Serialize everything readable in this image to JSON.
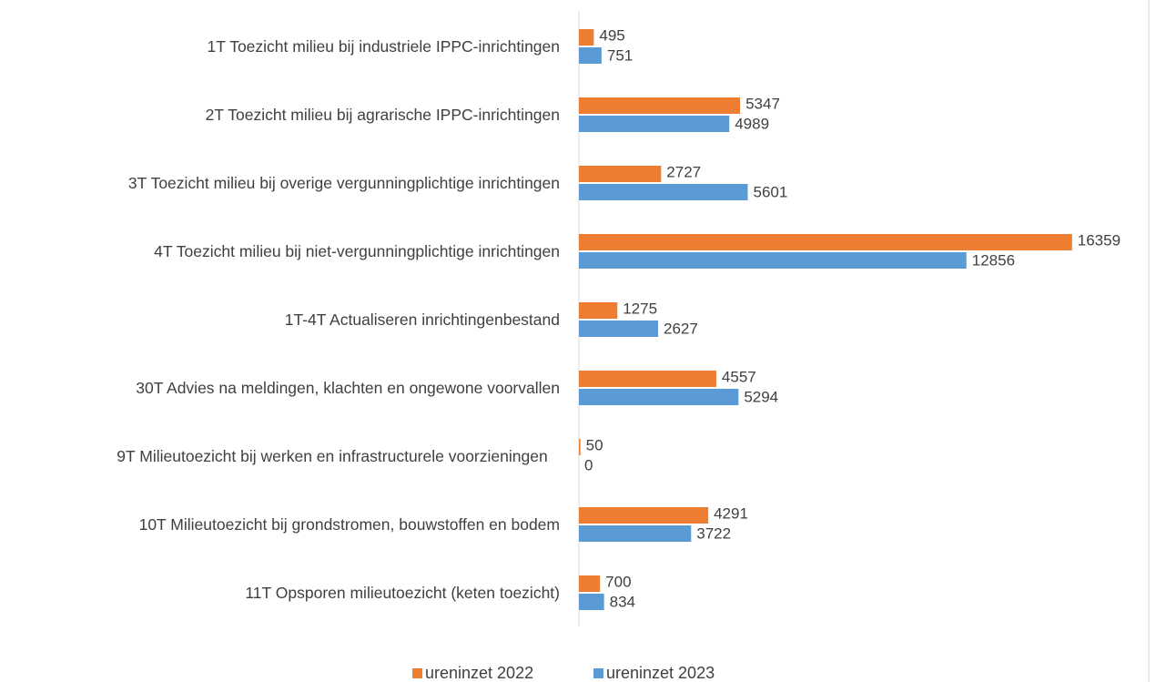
{
  "chart_data": {
    "type": "hbar",
    "categories": [
      "1T Toezicht milieu bij industriele IPPC-inrichtingen",
      "2T Toezicht milieu bij agrarische IPPC-inrichtingen",
      "3T Toezicht milieu bij overige vergunningplichtige inrichtingen",
      "4T Toezicht milieu bij niet-vergunningplichtige inrichtingen",
      "1T-4T Actualiseren inrichtingenbestand",
      "30T Advies na meldingen, klachten en ongewone voorvallen",
      "9T Milieutoezicht bij werken en infrastructurele voorzieningen",
      "10T Milieutoezicht bij grondstromen, bouwstoffen en bodem",
      "11T Opsporen milieutoezicht (keten toezicht)"
    ],
    "series": [
      {
        "name": "ureninzet 2022",
        "color": "#ed7d31",
        "values": [
          495,
          5347,
          2727,
          16359,
          1275,
          4557,
          50,
          4291,
          700
        ]
      },
      {
        "name": "ureninzet 2023",
        "color": "#5b9bd5",
        "values": [
          751,
          4989,
          5601,
          12856,
          2627,
          5294,
          0,
          3722,
          834
        ]
      }
    ],
    "xlim": [
      0,
      17000
    ],
    "legend": "bottom"
  }
}
